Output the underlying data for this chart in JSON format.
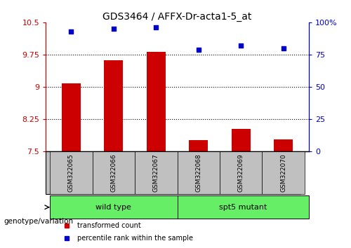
{
  "title": "GDS3464 / AFFX-Dr-acta1-5_at",
  "samples": [
    "GSM322065",
    "GSM322066",
    "GSM322067",
    "GSM322068",
    "GSM322069",
    "GSM322070"
  ],
  "transformed_count": [
    9.08,
    9.62,
    9.82,
    7.76,
    8.02,
    7.78
  ],
  "percentile_rank": [
    93,
    95,
    96,
    79,
    82,
    80
  ],
  "bar_color": "#cc0000",
  "scatter_color": "#0000cc",
  "ylim_left": [
    7.5,
    10.5
  ],
  "ylim_right": [
    0,
    100
  ],
  "yticks_left": [
    7.5,
    8.25,
    9,
    9.75,
    10.5
  ],
  "yticks_right": [
    0,
    25,
    50,
    75,
    100
  ],
  "ytick_labels_left": [
    "7.5",
    "8.25",
    "9",
    "9.75",
    "10.5"
  ],
  "ytick_labels_right": [
    "0",
    "25",
    "50",
    "75",
    "100%"
  ],
  "hlines": [
    8.25,
    9.0,
    9.75
  ],
  "wt_label": "wild type",
  "spt_label": "spt5 mutant",
  "group_label": "genotype/variation",
  "legend_items": [
    {
      "label": "transformed count",
      "color": "#cc0000"
    },
    {
      "label": "percentile rank within the sample",
      "color": "#0000cc"
    }
  ],
  "bar_width": 0.45,
  "xlabel_area_color": "#c0c0c0",
  "group_area_color": "#66ee66"
}
